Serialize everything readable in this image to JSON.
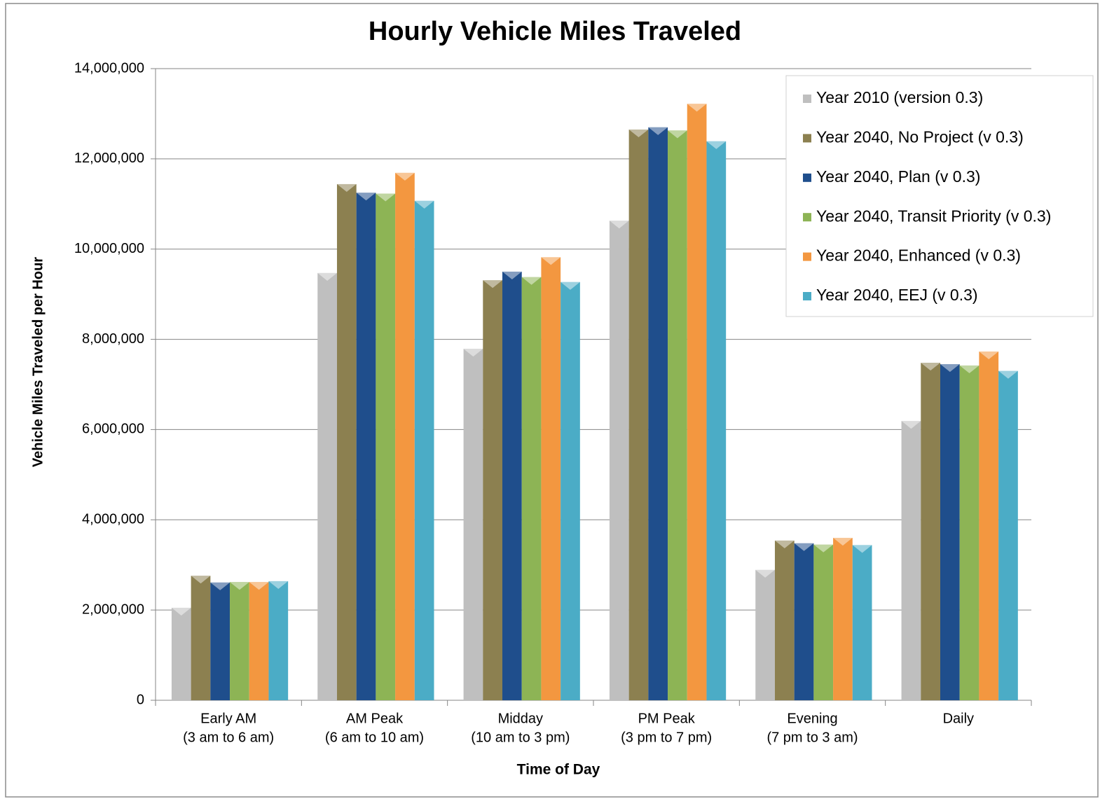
{
  "chart_data": {
    "type": "bar",
    "title": "Hourly Vehicle Miles Traveled",
    "xlabel": "Time of Day",
    "ylabel": "Vehicle Miles Traveled per Hour",
    "categories": [
      [
        "Early AM",
        "(3 am to 6 am)"
      ],
      [
        "AM Peak",
        "(6 am to 10 am)"
      ],
      [
        "Midday",
        "(10 am to 3 pm)"
      ],
      [
        "PM Peak",
        "(3 pm to 7 pm)"
      ],
      [
        "Evening",
        "(7 pm to 3 am)"
      ],
      [
        "Daily"
      ]
    ],
    "series": [
      {
        "name": "Year 2010 (version 0.3)",
        "color": "#bfbfbf",
        "values": [
          2050000,
          9470000,
          7790000,
          10630000,
          2890000,
          6190000
        ]
      },
      {
        "name": "Year 2040, No Project (v 0.3)",
        "color": "#8c8050",
        "values": [
          2760000,
          11440000,
          9310000,
          12650000,
          3540000,
          7480000
        ]
      },
      {
        "name": "Year 2040, Plan (v 0.3)",
        "color": "#1f4e8c",
        "values": [
          2610000,
          11250000,
          9500000,
          12700000,
          3480000,
          7450000
        ]
      },
      {
        "name": "Year 2040, Transit Priority (v 0.3)",
        "color": "#8db455",
        "values": [
          2620000,
          11230000,
          9380000,
          12630000,
          3450000,
          7420000
        ]
      },
      {
        "name": "Year 2040, Enhanced (v 0.3)",
        "color": "#f39740",
        "values": [
          2620000,
          11690000,
          9820000,
          13220000,
          3600000,
          7730000
        ]
      },
      {
        "name": "Year 2040, EEJ (v 0.3)",
        "color": "#4bacc6",
        "values": [
          2640000,
          11070000,
          9270000,
          12390000,
          3440000,
          7300000
        ]
      }
    ],
    "ylim": [
      0,
      14000000
    ],
    "yticks": [
      0,
      {
        "value": 2000000,
        "label": "2,000,000"
      },
      {
        "value": 4000000,
        "label": "4,000,000"
      },
      {
        "value": 6000000,
        "label": "6,000,000"
      },
      {
        "value": 8000000,
        "label": "8,000,000"
      },
      {
        "value": 10000000,
        "label": "10,000,000"
      },
      {
        "value": 12000000,
        "label": "12,000,000"
      },
      {
        "value": 14000000,
        "label": "14,000,000"
      }
    ],
    "grid": true,
    "legend": "upper right"
  }
}
